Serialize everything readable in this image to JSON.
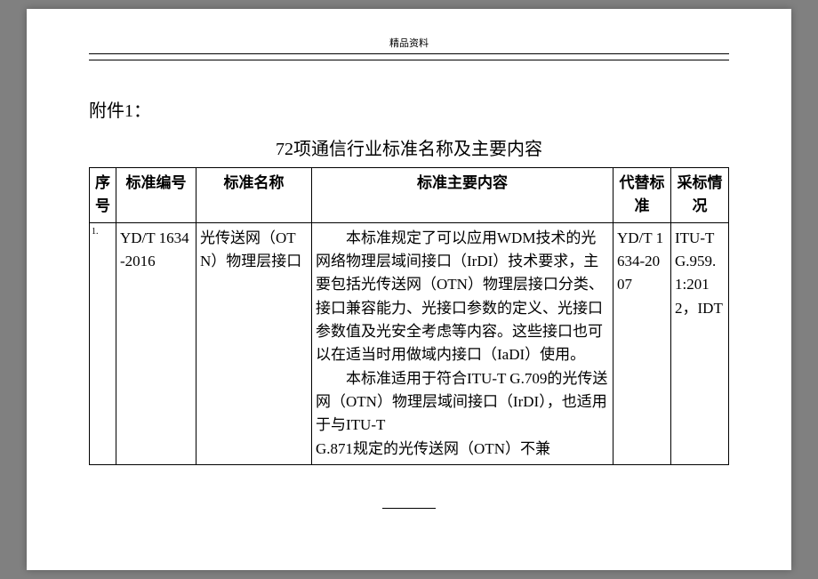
{
  "header": {
    "label": "精品资料"
  },
  "attachment": "附件1：",
  "title": "72项通信行业标准名称及主要内容",
  "table": {
    "headers": {
      "seq": "序号",
      "code": "标准编号",
      "name": "标准名称",
      "content": "标准主要内容",
      "replace": "代替标准",
      "adopt": "采标情况"
    },
    "rows": [
      {
        "seq": "1.",
        "code": "YD/T 1634-2016",
        "name": "光传送网（OTN）物理层接口",
        "content_p1": "本标准规定了可以应用WDM技术的光网络物理层域间接口（IrDI）技术要求，主要包括光传送网（OTN）物理层接口分类、接口兼容能力、光接口参数的定义、光接口参数值及光安全考虑等内容。这些接口也可以在适当时用做域内接口（IaDI）使用。",
        "content_p2": "本标准适用于符合ITU-T G.709的光传送网（OTN）物理层域间接口（IrDI），也适用于与ITU-T",
        "content_p3": "G.871规定的光传送网（OTN）不兼",
        "replace": "YD/T 1634-2007",
        "adopt": "ITU-T G.959.1:2012，IDT"
      }
    ]
  }
}
